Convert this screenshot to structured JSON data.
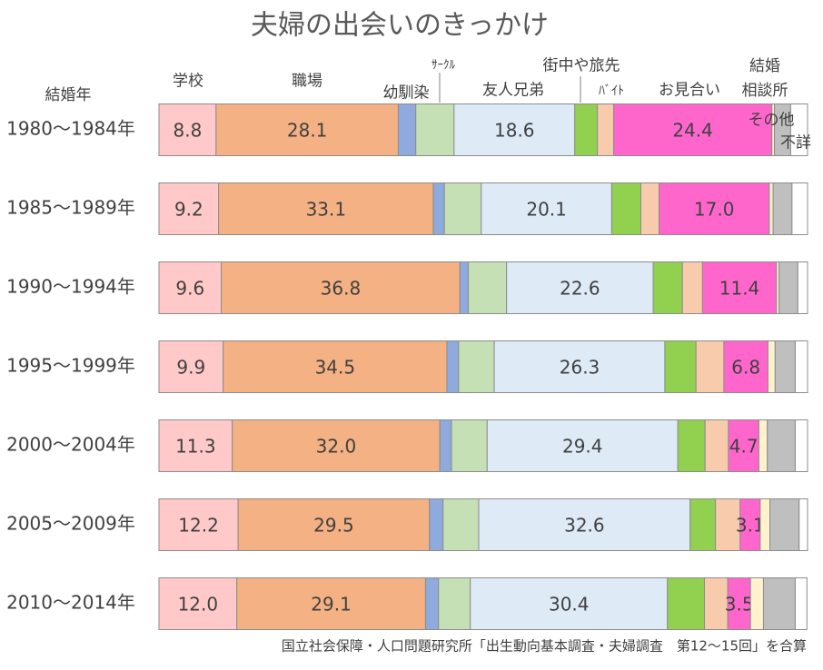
{
  "chart_data": {
    "type": "stacked_bar_horizontal_100",
    "title": "夫婦の出会いのきっかけ",
    "y_axis_label": "結婚年",
    "source": "国立社会保障・人口問題研究所「出生動向基本調査・夫婦調査　第12～15回」を合算",
    "categories": [
      "1980～1984年",
      "1985～1989年",
      "1990～1994年",
      "1995～1999年",
      "2000～2004年",
      "2005～2009年",
      "2010～2014年"
    ],
    "xlim": [
      0,
      100
    ],
    "series": [
      {
        "name": "学校",
        "color": "#ffc9c9",
        "values": [
          8.8,
          9.2,
          9.6,
          9.9,
          11.3,
          12.2,
          12.0
        ],
        "value_labels": [
          "8.8",
          "9.2",
          "9.6",
          "9.9",
          "11.3",
          "12.2",
          "12.0"
        ]
      },
      {
        "name": "職場",
        "color": "#f4b183",
        "values": [
          28.1,
          33.1,
          36.8,
          34.5,
          32.0,
          29.5,
          29.1
        ],
        "value_labels": [
          "28.1",
          "33.1",
          "36.8",
          "34.5",
          "32.0",
          "29.5",
          "29.1"
        ]
      },
      {
        "name": "幼馴染",
        "color": "#8faadc",
        "values": [
          2.7,
          1.7,
          1.3,
          1.8,
          1.8,
          2.1,
          2.0
        ]
      },
      {
        "name": "ｻｰｸﾙ",
        "color": "#c5e0b4",
        "values": [
          5.9,
          5.7,
          5.9,
          5.5,
          5.5,
          5.5,
          4.9
        ]
      },
      {
        "name": "友人兄弟",
        "color": "#deebf7",
        "values": [
          18.6,
          20.1,
          22.6,
          26.3,
          29.4,
          32.6,
          30.4
        ],
        "value_labels": [
          "18.6",
          "20.1",
          "22.6",
          "26.3",
          "29.4",
          "32.6",
          "30.4"
        ]
      },
      {
        "name": "街中や旅先",
        "color": "#92d050",
        "values": [
          3.5,
          4.5,
          4.5,
          4.8,
          4.2,
          3.9,
          5.7
        ]
      },
      {
        "name": "ﾊﾞｲﾄ",
        "color": "#f8cbad",
        "values": [
          2.5,
          2.8,
          3.1,
          4.3,
          3.6,
          3.8,
          3.6
        ]
      },
      {
        "name": "お見合い",
        "color": "#ff66cc",
        "values": [
          24.4,
          17.0,
          11.4,
          6.8,
          4.7,
          3.1,
          3.5
        ],
        "value_labels": [
          "24.4",
          "17.0",
          "11.4",
          "6.8",
          "4.7",
          "3.1",
          "3.5"
        ]
      },
      {
        "name": "結婚\n相談所",
        "color": "#fff2cc",
        "values": [
          0.4,
          0.6,
          0.4,
          1.1,
          1.3,
          1.5,
          2.0
        ]
      },
      {
        "name": "その他",
        "color": "#bfbfbf",
        "values": [
          2.5,
          2.9,
          2.9,
          3.1,
          4.3,
          4.5,
          4.9
        ]
      },
      {
        "name": "不詳",
        "color": "#ffffff",
        "values": [
          2.6,
          2.4,
          1.5,
          1.9,
          1.9,
          1.3,
          1.8
        ]
      }
    ]
  }
}
